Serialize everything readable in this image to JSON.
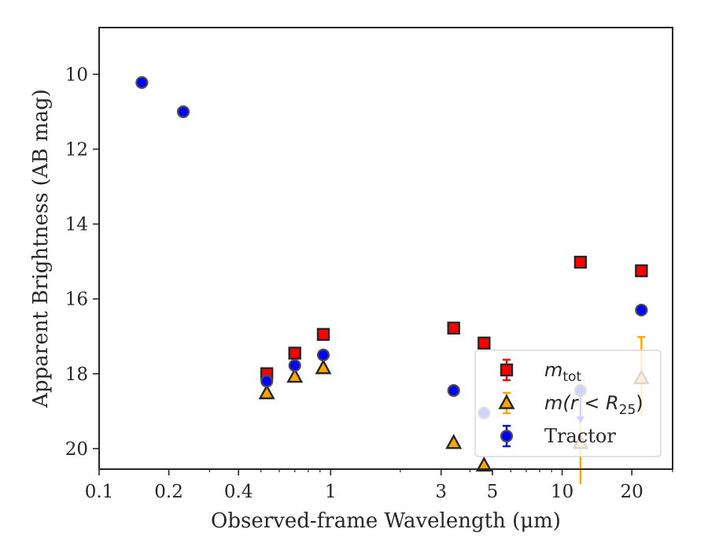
{
  "chart_data": {
    "type": "scatter",
    "xlabel": "Observed-frame Wavelength (μm)",
    "ylabel": "Apparent Brightness (AB mag)",
    "xscale": "log",
    "xlim": [
      0.1,
      30
    ],
    "ylim": [
      20.55,
      8.75
    ],
    "y_inverted": true,
    "x_ticks": [
      {
        "value": 0.1,
        "label": "0.1"
      },
      {
        "value": 0.2,
        "label": "0.2"
      },
      {
        "value": 0.4,
        "label": "0.4"
      },
      {
        "value": 1,
        "label": "1"
      },
      {
        "value": 3,
        "label": "3"
      },
      {
        "value": 5,
        "label": "5"
      },
      {
        "value": 10,
        "label": "10"
      },
      {
        "value": 20,
        "label": "20"
      }
    ],
    "y_ticks": [
      {
        "value": 10,
        "label": "10"
      },
      {
        "value": 12,
        "label": "12"
      },
      {
        "value": 14,
        "label": "14"
      },
      {
        "value": 16,
        "label": "16"
      },
      {
        "value": 18,
        "label": "18"
      },
      {
        "value": 20,
        "label": "20"
      }
    ],
    "grid": false,
    "legend_position": "lower-right",
    "series": [
      {
        "name": "m_tot",
        "marker": "square",
        "color": "#ff0000",
        "edge": "#262626",
        "points": [
          {
            "x": 0.53,
            "y": 18.0
          },
          {
            "x": 0.7,
            "y": 17.45
          },
          {
            "x": 0.93,
            "y": 16.95
          },
          {
            "x": 3.4,
            "y": 16.78
          },
          {
            "x": 4.6,
            "y": 17.18
          },
          {
            "x": 12.0,
            "y": 15.02
          },
          {
            "x": 22.0,
            "y": 15.25
          }
        ]
      },
      {
        "name": "m(r<R25)",
        "marker": "triangle",
        "color": "#ffa500",
        "edge": "#262626",
        "points": [
          {
            "x": 0.53,
            "y": 18.52
          },
          {
            "x": 0.7,
            "y": 18.08
          },
          {
            "x": 0.93,
            "y": 17.85
          },
          {
            "x": 3.4,
            "y": 19.85
          },
          {
            "x": 4.6,
            "y": 20.45
          },
          {
            "x": 12.0,
            "y": 19.85,
            "err_low": 1.1,
            "err_high": 1.1
          },
          {
            "x": 22.0,
            "y": 18.12,
            "err_low": 1.1,
            "err_high": 1.0
          }
        ]
      },
      {
        "name": "Tractor",
        "marker": "circle",
        "color": "#0000ff",
        "edge": "#262626",
        "points": [
          {
            "x": 0.153,
            "y": 10.22
          },
          {
            "x": 0.231,
            "y": 11.0
          },
          {
            "x": 0.53,
            "y": 18.2
          },
          {
            "x": 0.7,
            "y": 17.78
          },
          {
            "x": 0.93,
            "y": 17.5
          },
          {
            "x": 3.4,
            "y": 18.45
          },
          {
            "x": 4.6,
            "y": 19.05
          },
          {
            "x": 12.0,
            "y": 18.45,
            "upper_limit": true
          },
          {
            "x": 22.0,
            "y": 16.3
          }
        ]
      }
    ],
    "legend": {
      "entries": [
        {
          "name": "m",
          "sub": "tot",
          "series": 0
        },
        {
          "name": "m(r < R",
          "sub": "25",
          "tail": ")",
          "series": 1
        },
        {
          "name": "Tractor",
          "series": 2
        }
      ]
    }
  }
}
